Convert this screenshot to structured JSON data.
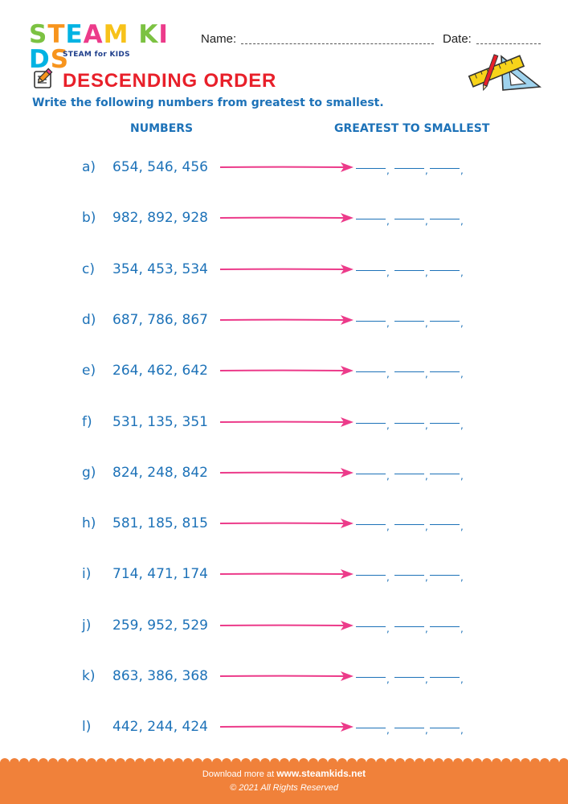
{
  "brand": {
    "logo_letters": [
      "S",
      "T",
      "E",
      "A",
      "M",
      " ",
      "K",
      "I",
      "D",
      "S"
    ],
    "logo_colors": [
      "#7cc242",
      "#f7941d",
      "#00b3e3",
      "#ec3b8a",
      "#f7c21a",
      "#ffffff",
      "#7cc242",
      "#ec3b8a",
      "#00b3e3",
      "#f7941d"
    ],
    "tagline": "STEAM for KIDS"
  },
  "header": {
    "name_label": "Name:",
    "date_label": "Date:"
  },
  "worksheet": {
    "title": "DESCENDING ORDER",
    "instruction": "Write the following numbers from greatest to smallest.",
    "col_numbers": "NUMBERS",
    "col_answer": "GREATEST TO SMALLEST",
    "items": [
      {
        "letter": "a)",
        "numbers": "654, 546, 456"
      },
      {
        "letter": "b)",
        "numbers": "982, 892, 928"
      },
      {
        "letter": "c)",
        "numbers": "354, 453, 534"
      },
      {
        "letter": "d)",
        "numbers": "687, 786, 867"
      },
      {
        "letter": "e)",
        "numbers": "264, 462, 642"
      },
      {
        "letter": "f)",
        "numbers": "531, 135, 351"
      },
      {
        "letter": "g)",
        "numbers": "824, 248, 842"
      },
      {
        "letter": "h)",
        "numbers": "581, 185, 815"
      },
      {
        "letter": "i)",
        "numbers": "714, 471, 174"
      },
      {
        "letter": "j)",
        "numbers": "259, 952, 529"
      },
      {
        "letter": "k)",
        "numbers": "863, 386, 368"
      },
      {
        "letter": "l)",
        "numbers": "442, 244, 424"
      }
    ]
  },
  "icons": {
    "title_icon": "pencil-paper-icon",
    "corner_icon": "ruler-set-square-icon",
    "arrow_color": "#ec3b8a"
  },
  "footer": {
    "download_prefix": "Download more at",
    "site": "www.steamkids.net",
    "copyright": "© 2021 All Rights Reserved",
    "bg_color": "#f0813a"
  },
  "colors": {
    "title_red": "#e8202a",
    "text_blue": "#1d72b8"
  }
}
